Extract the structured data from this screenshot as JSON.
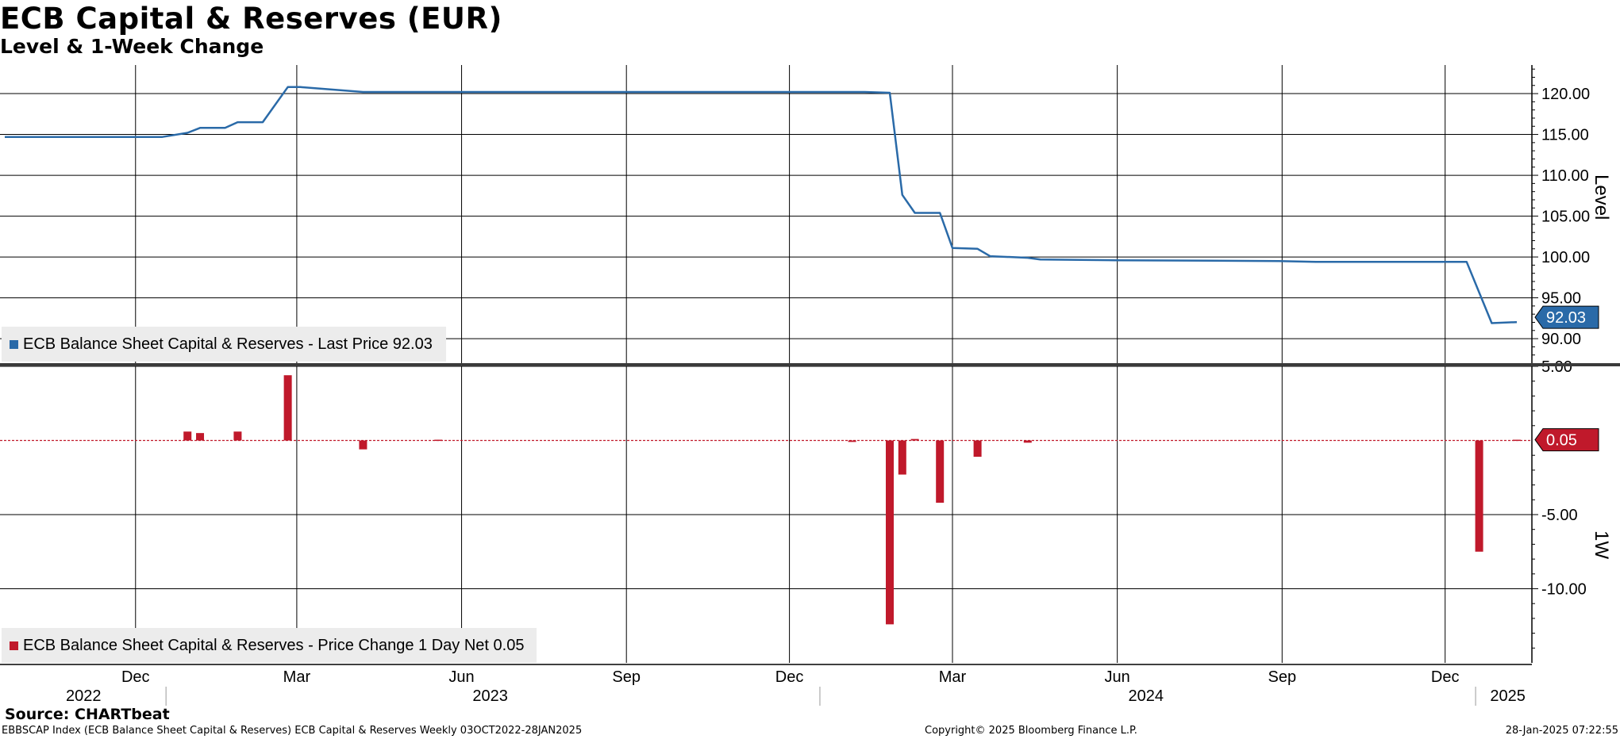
{
  "title": "ECB Capital & Reserves (EUR)",
  "subtitle": "Level & 1-Week Change",
  "footer": {
    "source": "Source: CHARTbeat",
    "left": "EBBSCAP Index (ECB Balance Sheet Capital & Reserves) ECB Capital & Reserves  Weekly 03OCT2022-28JAN2025",
    "middle": "Copyright© 2025 Bloomberg Finance L.P.",
    "right": "28-Jan-2025 07:22:55"
  },
  "colors": {
    "level_line": "#2a6aa8",
    "change_bar": "#c0192b",
    "legend_bg": "#ececec"
  },
  "x_axis": {
    "month_labels": [
      "Dec",
      "Mar",
      "Jun",
      "Sep",
      "Dec",
      "Mar",
      "Jun",
      "Sep",
      "Dec"
    ],
    "month_dates": [
      "2022-12-15",
      "2023-03-15",
      "2023-06-15",
      "2023-09-15",
      "2023-12-15",
      "2024-03-15",
      "2024-06-15",
      "2024-09-15",
      "2024-12-15"
    ],
    "year_labels": [
      "2022",
      "2023",
      "2024",
      "2025"
    ],
    "year_dates": [
      "2022-11-16",
      "2023-07-01",
      "2024-07-01",
      "2025-01-19"
    ],
    "year_separators": [
      "2023-01-01",
      "2024-01-01",
      "2025-01-01"
    ],
    "range": [
      "2022-10-03",
      "2025-01-28"
    ]
  },
  "chart_data": [
    {
      "type": "line",
      "panel": "top",
      "ylabel": "Level",
      "ylim": [
        87.0,
        123.5
      ],
      "yticks": [
        "120.00",
        "115.00",
        "110.00",
        "105.00",
        "100.00",
        "95.00",
        "90.00"
      ],
      "ytick_values": [
        120,
        115,
        110,
        105,
        100,
        95,
        90
      ],
      "legend": "ECB Balance Sheet Capital & Reserves - Last Price 92.03",
      "last_value_label": "92.03",
      "last_value": 92.03,
      "grid": true,
      "series": [
        {
          "name": "ECB Balance Sheet Capital & Reserves - Last Price",
          "x": [
            "2022-10-03",
            "2022-12-30",
            "2023-01-13",
            "2023-01-20",
            "2023-02-03",
            "2023-02-10",
            "2023-02-17",
            "2023-02-24",
            "2023-03-10",
            "2023-03-17",
            "2023-04-21",
            "2023-05-12",
            "2023-06-16",
            "2023-09-15",
            "2023-12-15",
            "2024-01-26",
            "2024-02-09",
            "2024-02-16",
            "2024-02-23",
            "2024-03-08",
            "2024-03-15",
            "2024-03-29",
            "2024-04-05",
            "2024-04-26",
            "2024-05-03",
            "2024-06-14",
            "2024-09-13",
            "2024-10-04",
            "2024-12-27",
            "2025-01-10",
            "2025-01-24"
          ],
          "values": [
            114.7,
            114.7,
            115.2,
            115.8,
            115.8,
            116.5,
            116.5,
            116.5,
            120.8,
            120.8,
            120.2,
            120.2,
            120.2,
            120.2,
            120.2,
            120.2,
            120.1,
            107.6,
            105.4,
            105.4,
            101.1,
            101.0,
            100.1,
            99.9,
            99.7,
            99.6,
            99.5,
            99.4,
            99.4,
            91.9,
            92.03
          ]
        }
      ]
    },
    {
      "type": "bar",
      "panel": "bottom",
      "ylabel": "1W",
      "ylim": [
        -15.0,
        5.0
      ],
      "yticks": [
        "5.00",
        "-5.00",
        "-10.00"
      ],
      "ytick_values": [
        5,
        -5,
        -10
      ],
      "legend": "ECB Balance Sheet Capital & Reserves - Price Change 1 Day Net 0.05",
      "last_value_label": "0.05",
      "last_value": 0.05,
      "grid": true,
      "series": [
        {
          "name": "ECB Balance Sheet Capital & Reserves - Price Change 1 Day Net",
          "x": [
            "2023-01-13",
            "2023-01-20",
            "2023-02-10",
            "2023-03-10",
            "2023-04-21",
            "2023-06-02",
            "2024-01-19",
            "2024-02-09",
            "2024-02-16",
            "2024-02-23",
            "2024-03-08",
            "2024-03-29",
            "2024-04-26",
            "2025-01-03",
            "2025-01-24"
          ],
          "values": [
            0.6,
            0.5,
            0.6,
            4.4,
            -0.6,
            0.05,
            -0.1,
            -12.4,
            -2.3,
            0.1,
            -4.2,
            -1.1,
            -0.15,
            -7.5,
            0.05
          ]
        }
      ]
    }
  ]
}
